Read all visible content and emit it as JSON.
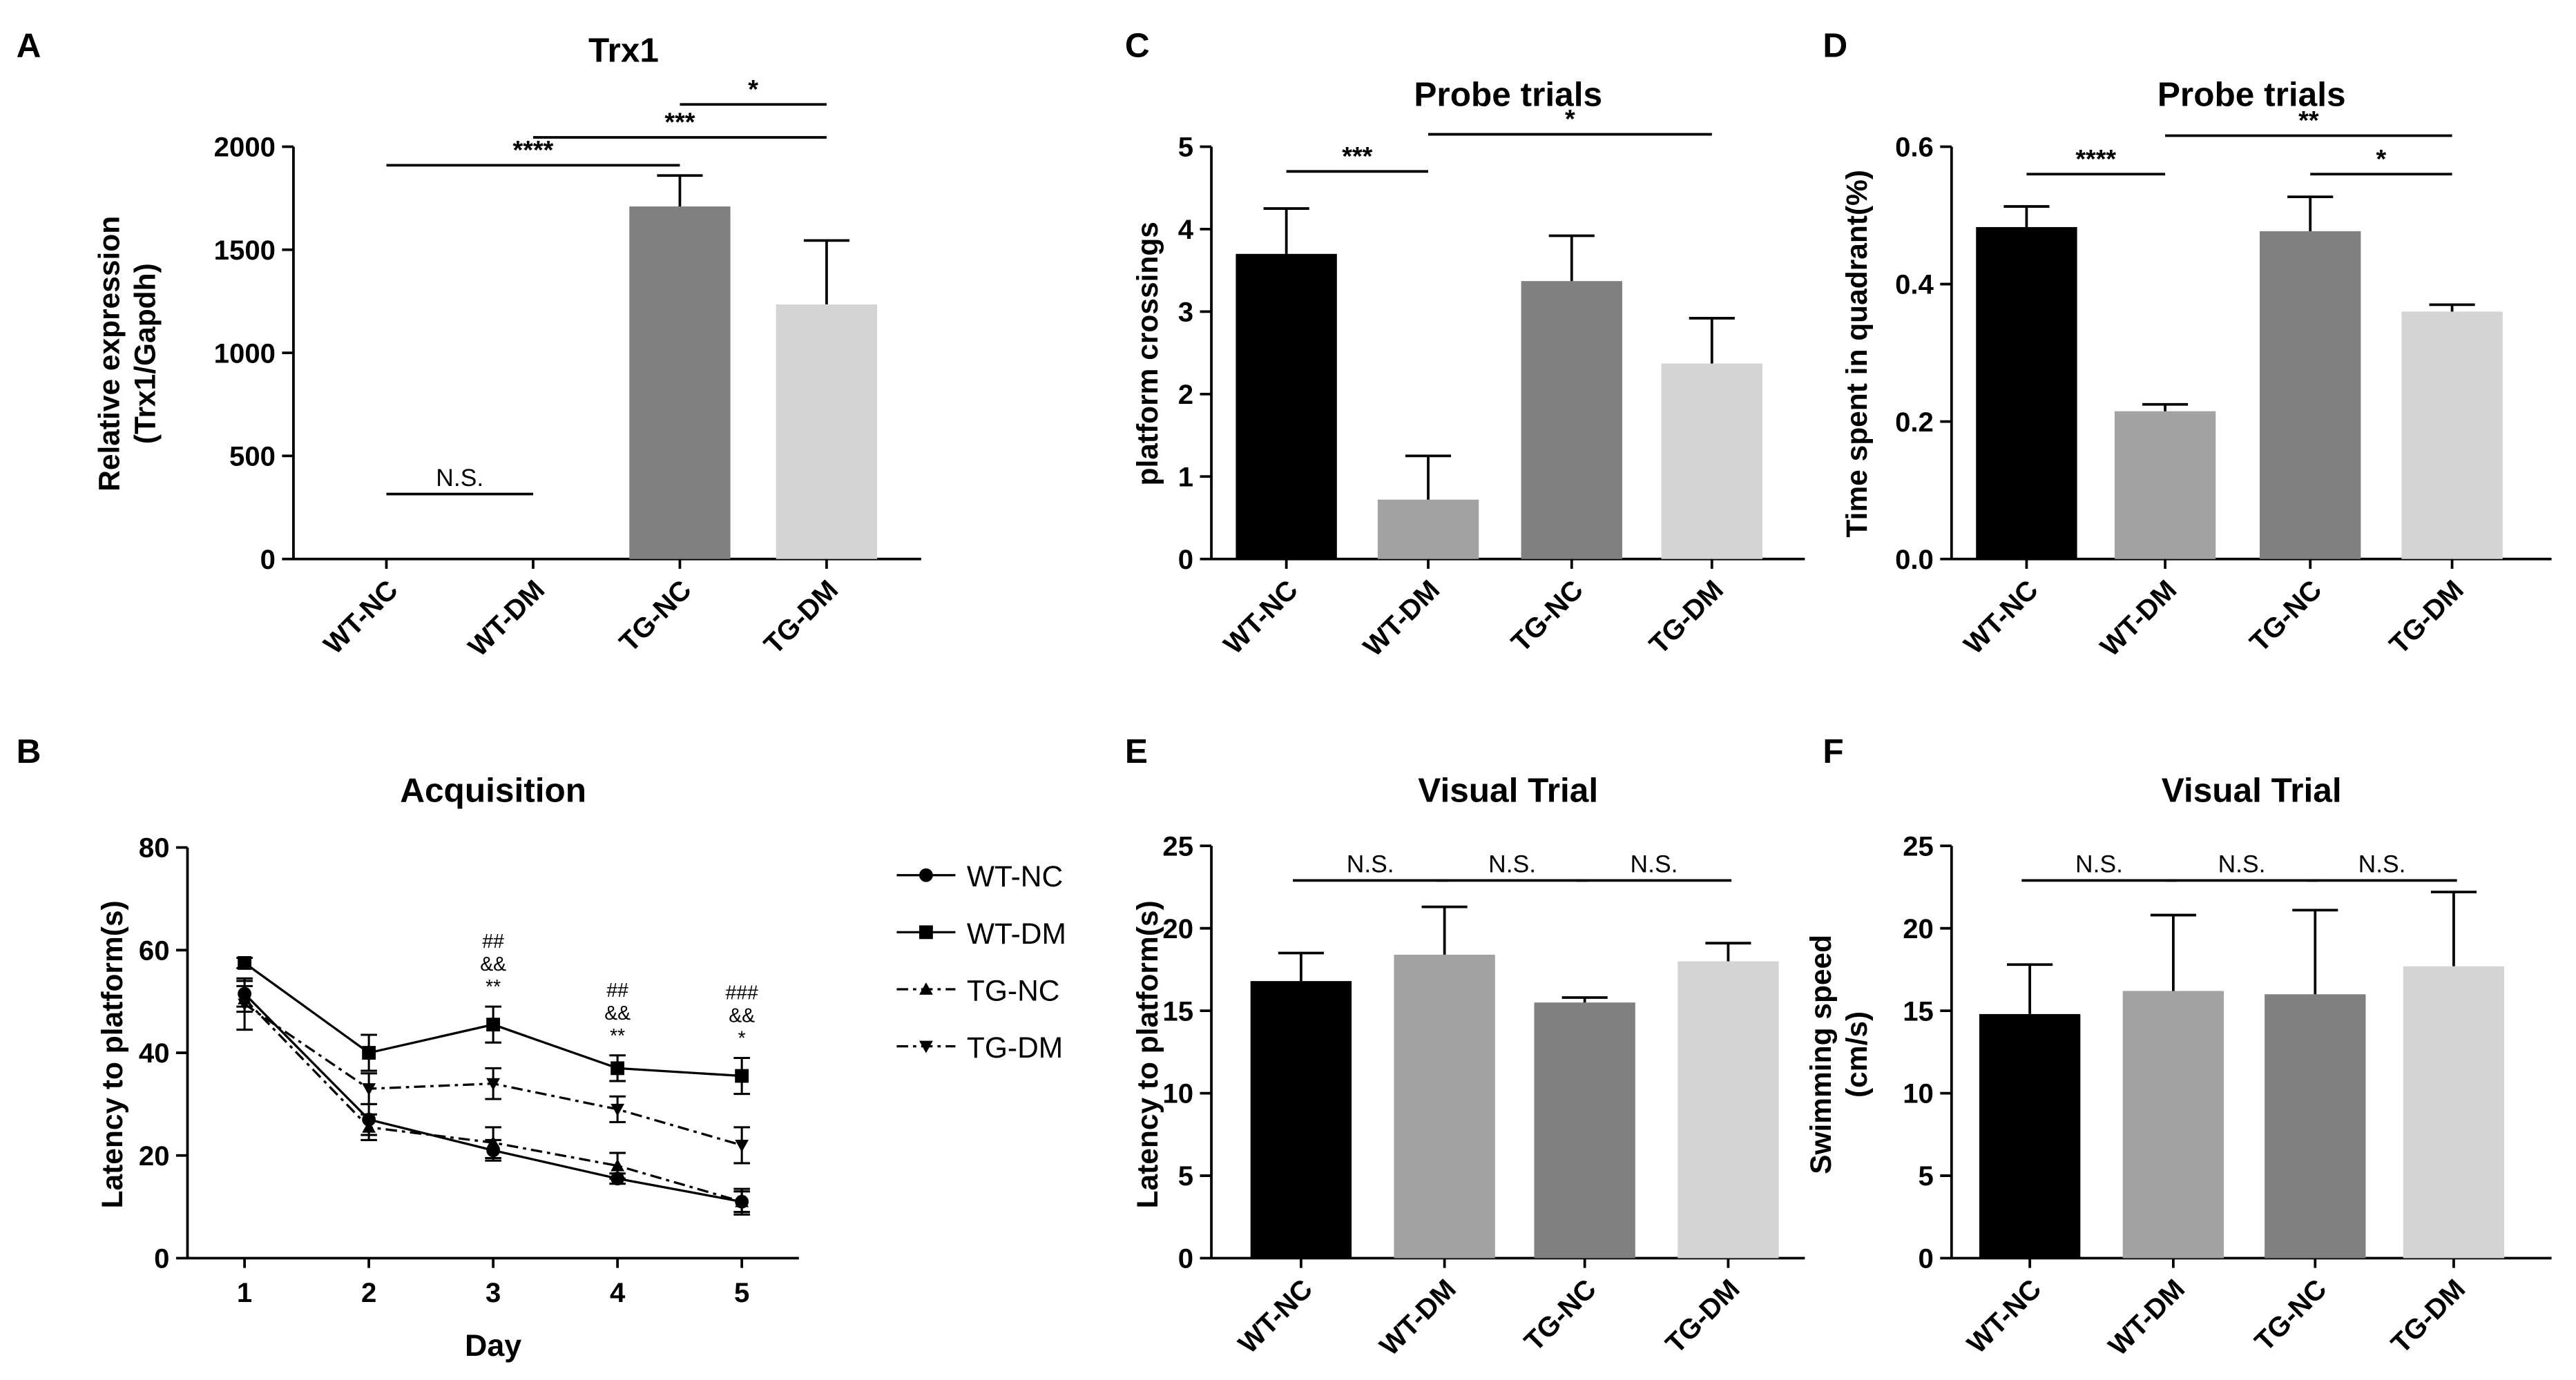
{
  "chart_data": [
    {
      "id": "A",
      "type": "bar",
      "panel": "A",
      "title": "Trx1",
      "ylabel": "Relative expression\n(Trx1/Gapdh)",
      "ylim": [
        0,
        2000
      ],
      "yticks": [
        0,
        500,
        1000,
        1500,
        2000
      ],
      "categories": [
        "WT-NC",
        "WT-DM",
        "TG-NC",
        "TG-DM"
      ],
      "values": [
        0,
        0,
        1710,
        1235
      ],
      "errors": [
        0,
        0,
        150,
        310
      ],
      "colors": [
        "#000000",
        "#a2a2a5",
        "#808080",
        "#d4d4d4"
      ],
      "sig": [
        {
          "from": 0,
          "to": 1,
          "label": "N.S.",
          "y": 315
        },
        {
          "from": 0,
          "to": 2,
          "label": "****",
          "y": 1910
        },
        {
          "from": 1,
          "to": 3,
          "label": "***",
          "y": 2045
        },
        {
          "from": 2,
          "to": 3,
          "label": "*",
          "y": 2205
        }
      ]
    },
    {
      "id": "B",
      "type": "line",
      "panel": "B",
      "title": "Acquisition",
      "xlabel": "Day",
      "ylabel": "Latency to platform(s)",
      "x": [
        1,
        2,
        3,
        4,
        5
      ],
      "xlim": [
        0.5,
        5.5
      ],
      "ylim": [
        0,
        80
      ],
      "yticks": [
        0,
        20,
        40,
        60,
        80
      ],
      "series": [
        {
          "name": "WT-NC",
          "values": [
            51.5,
            27,
            21,
            15.5,
            11
          ],
          "errors": [
            2.5,
            3,
            2,
            1,
            2.5
          ],
          "marker": "circle",
          "dash": "none"
        },
        {
          "name": "WT-DM",
          "values": [
            57.5,
            40,
            45.5,
            37,
            35.5
          ],
          "errors": [
            1,
            3.5,
            3.5,
            2.5,
            3.5
          ],
          "marker": "square",
          "dash": "none"
        },
        {
          "name": "TG-NC",
          "values": [
            50.5,
            25.5,
            22.5,
            18,
            11
          ],
          "errors": [
            2.5,
            2.5,
            3,
            2.5,
            2
          ],
          "marker": "triangle-up",
          "dash": "dashdot"
        },
        {
          "name": "TG-DM",
          "values": [
            49.5,
            33,
            34,
            29,
            22
          ],
          "errors": [
            5,
            3,
            3,
            2.5,
            3.5
          ],
          "marker": "triangle-down",
          "dash": "dashdot"
        }
      ],
      "annotations": [
        {
          "x": 3,
          "lines": [
            "##",
            "&&",
            "**"
          ]
        },
        {
          "x": 4,
          "lines": [
            "##",
            "&&",
            "**"
          ]
        },
        {
          "x": 5,
          "lines": [
            "###",
            "&&",
            "*"
          ]
        }
      ]
    },
    {
      "id": "C",
      "type": "bar",
      "panel": "C",
      "title": "Probe trials",
      "ylabel": "platform crossings",
      "ylim": [
        0,
        5
      ],
      "yticks": [
        0,
        1,
        2,
        3,
        4,
        5
      ],
      "categories": [
        "WT-NC",
        "WT-DM",
        "TG-NC",
        "TG-DM"
      ],
      "values": [
        3.7,
        0.72,
        3.37,
        2.37
      ],
      "errors": [
        0.55,
        0.53,
        0.55,
        0.55
      ],
      "colors": [
        "#000000",
        "#a2a2a5",
        "#808080",
        "#d4d4d4"
      ],
      "sig": [
        {
          "from": 0,
          "to": 1,
          "label": "***",
          "y": 4.7
        },
        {
          "from": 1,
          "to": 3,
          "label": "*",
          "y": 5.15
        }
      ]
    },
    {
      "id": "D",
      "type": "bar",
      "panel": "D",
      "title": "Probe trials",
      "ylabel": "Time spent in quadrant(%)",
      "ylim": [
        0,
        0.6
      ],
      "yticks": [
        "0.0",
        "0.2",
        "0.4",
        "0.6"
      ],
      "categories": [
        "WT-NC",
        "WT-DM",
        "TG-NC",
        "TG-DM"
      ],
      "values": [
        0.483,
        0.215,
        0.477,
        0.36
      ],
      "errors": [
        0.03,
        0.01,
        0.05,
        0.01
      ],
      "colors": [
        "#000000",
        "#a2a2a5",
        "#808080",
        "#d4d4d4"
      ],
      "sig": [
        {
          "from": 0,
          "to": 1,
          "label": "****",
          "y": 0.56
        },
        {
          "from": 1,
          "to": 3,
          "label": "**",
          "y": 0.616
        },
        {
          "from": 2,
          "to": 3,
          "label": "*",
          "y": 0.56
        }
      ]
    },
    {
      "id": "E",
      "type": "bar",
      "panel": "E",
      "title": "Visual Trial",
      "ylabel": "Latency to platform(s)",
      "ylim": [
        0,
        25
      ],
      "yticks": [
        0,
        5,
        10,
        15,
        20,
        25
      ],
      "categories": [
        "WT-NC",
        "WT-DM",
        "TG-NC",
        "TG-DM"
      ],
      "values": [
        16.8,
        18.4,
        15.5,
        18
      ],
      "errors": [
        1.7,
        2.9,
        0.3,
        1.1
      ],
      "colors": [
        "#000000",
        "#a2a2a5",
        "#808080",
        "#d4d4d4"
      ],
      "sig": [
        {
          "from": 0,
          "to": 1,
          "label": "N.S.",
          "y": 22.9
        },
        {
          "from": 1,
          "to": 2,
          "label": "N.S.",
          "y": 22.9
        },
        {
          "from": 2,
          "to": 3,
          "label": "N.S.",
          "y": 22.9
        }
      ]
    },
    {
      "id": "F",
      "type": "bar",
      "panel": "F",
      "title": "Visual Trial",
      "ylabel": "Swimming speed\n(cm/s)",
      "ylim": [
        0,
        25
      ],
      "yticks": [
        0,
        5,
        10,
        15,
        20,
        25
      ],
      "categories": [
        "WT-NC",
        "WT-DM",
        "TG-NC",
        "TG-DM"
      ],
      "values": [
        14.8,
        16.2,
        16,
        17.7
      ],
      "errors": [
        3,
        4.6,
        5.1,
        4.5
      ],
      "colors": [
        "#000000",
        "#a2a2a5",
        "#808080",
        "#d4d4d4"
      ],
      "sig": [
        {
          "from": 0,
          "to": 1,
          "label": "N.S.",
          "y": 22.9
        },
        {
          "from": 1,
          "to": 2,
          "label": "N.S.",
          "y": 22.9
        },
        {
          "from": 2,
          "to": 3,
          "label": "N.S.",
          "y": 22.9
        }
      ]
    }
  ]
}
